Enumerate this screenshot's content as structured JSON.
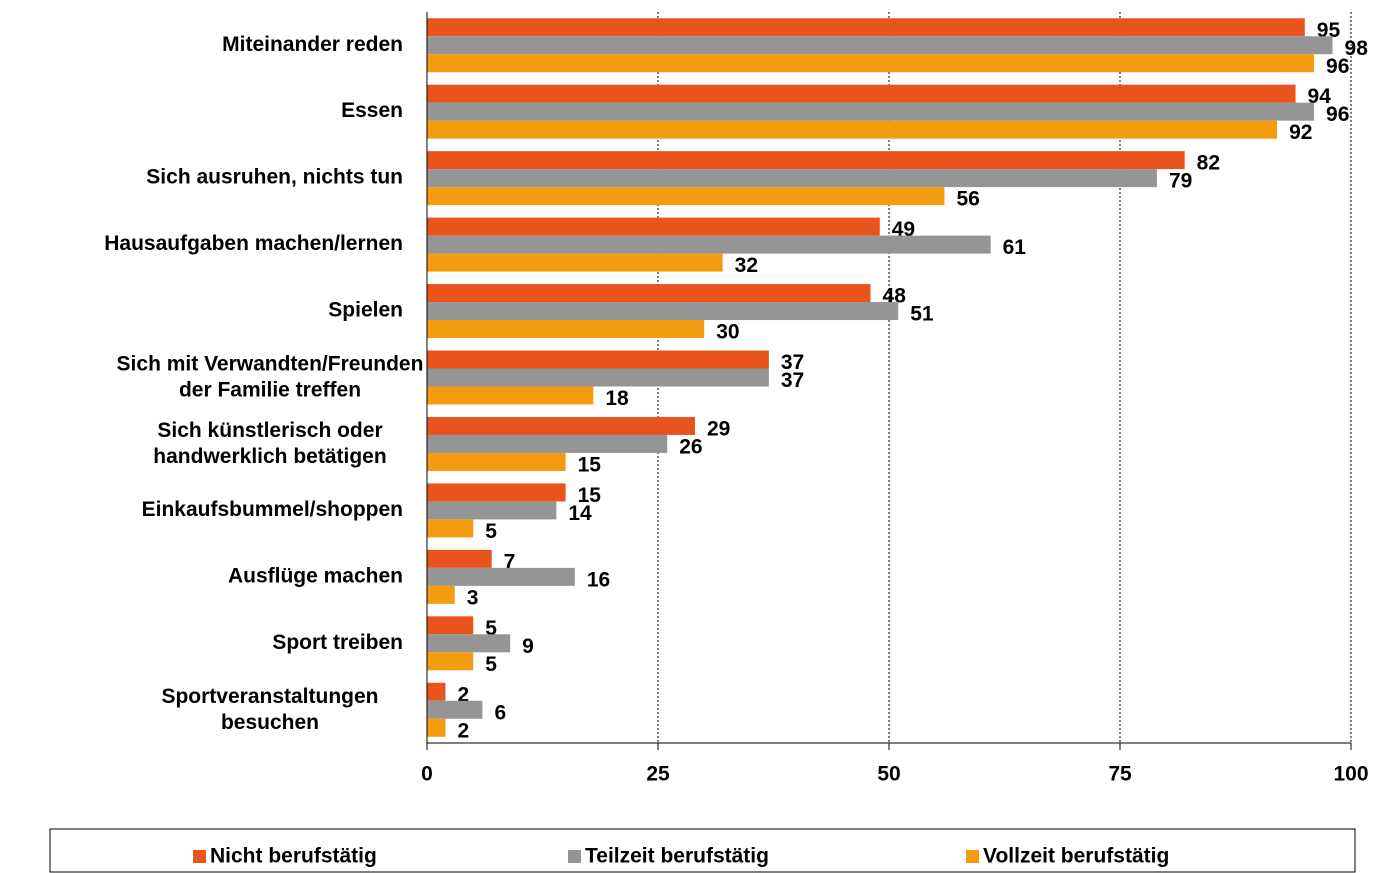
{
  "chart_data": {
    "type": "bar",
    "orientation": "horizontal",
    "categories": [
      "Miteinander reden",
      "Essen",
      "Sich ausruhen, nichts tun",
      "Hausaufgaben machen/lernen",
      "Spielen",
      "Sich mit Verwandten/Freunden\nder Familie treffen",
      "Sich künstlerisch oder\nhandwerklich betätigen",
      "Einkaufsbummel/shoppen",
      "Ausflüge machen",
      "Sport treiben",
      "Sportveranstaltungen\nbesuchen"
    ],
    "series": [
      {
        "name": "Nicht berufstätig",
        "color": "#e8541c",
        "values": [
          95,
          94,
          82,
          49,
          48,
          37,
          29,
          15,
          7,
          5,
          2
        ]
      },
      {
        "name": "Teilzeit berufstätig",
        "color": "#959595",
        "values": [
          98,
          96,
          79,
          61,
          51,
          37,
          26,
          14,
          16,
          9,
          6
        ]
      },
      {
        "name": "Vollzeit berufstätig",
        "color": "#f39c0f",
        "values": [
          96,
          92,
          56,
          32,
          30,
          18,
          15,
          5,
          3,
          5,
          2
        ]
      }
    ],
    "xlim": [
      0,
      100
    ],
    "xticks": [
      0,
      25,
      50,
      75,
      100
    ],
    "grid": true,
    "legend": "bottom"
  }
}
